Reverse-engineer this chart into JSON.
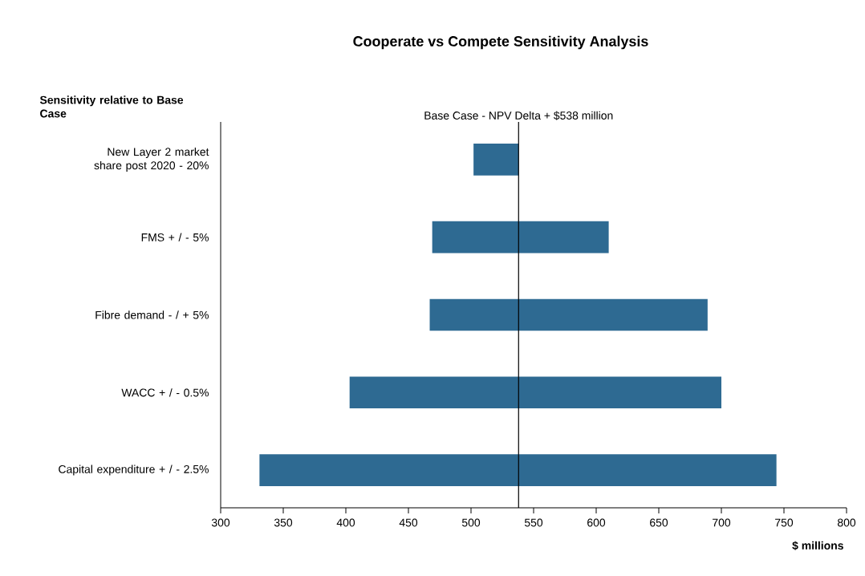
{
  "chart_data": {
    "type": "bar",
    "orientation": "horizontal",
    "title": "Cooperate vs Compete Sensitivity Analysis",
    "ylabel": "Sensitivity relative to Base Case",
    "xlabel": "$ millions",
    "categories": [
      "New Layer 2 market share post 2020 - 20%",
      "FMS + / - 5%",
      "Fibre demand - / + 5%",
      "WACC + / - 0.5%",
      "Capital expenditure + / - 2.5%"
    ],
    "base": [
      502,
      469,
      467,
      403,
      331
    ],
    "values": [
      36,
      141,
      222,
      297,
      413
    ],
    "color": "#2e6a92",
    "xlim": [
      300,
      800
    ],
    "xticks": [
      300,
      350,
      400,
      450,
      500,
      550,
      600,
      650,
      700,
      750,
      800
    ],
    "ref_lines": [
      {
        "axis": "x",
        "value": 538,
        "label": "Base Case - NPV Delta + $538 million",
        "color": "#000000",
        "line_style": "solid"
      }
    ]
  }
}
